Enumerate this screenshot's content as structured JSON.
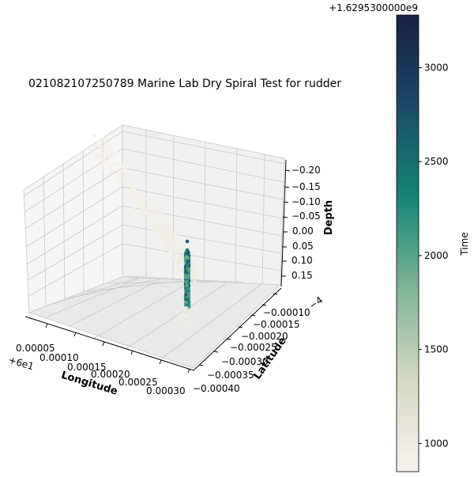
{
  "chart_data": {
    "type": "scatter",
    "title": "021082107250789 Marine Lab Dry Spiral Test for rudder",
    "xlabel": "Longitude",
    "ylabel": "Latitude",
    "zlabel": "Depth",
    "x_offset_label": "+6e1",
    "y_offset_label": "−4",
    "x_ticks": [
      "0.00005",
      "0.00010",
      "0.00015",
      "0.00020",
      "0.00025",
      "0.00030"
    ],
    "y_ticks": [
      "−0.00010",
      "−0.00015",
      "−0.00020",
      "−0.00025",
      "−0.00030",
      "−0.00035",
      "−0.00040"
    ],
    "z_ticks": [
      "−0.20",
      "−0.15",
      "−0.10",
      "−0.05",
      "0.00",
      "0.05",
      "0.10",
      "0.15"
    ],
    "z_inverted": true,
    "grid": true,
    "colorbar": {
      "label": "Time",
      "offset_label": "+1.6295300000e9",
      "ticks": [
        "1000",
        "1500",
        "2000",
        "2500",
        "3000"
      ],
      "range": [
        850,
        3280
      ],
      "colormap": "teal sequential",
      "colors": [
        "#f8f2ee",
        "#d6d9c4",
        "#7fb596",
        "#168577",
        "#1b4a67",
        "#171f45"
      ]
    },
    "series": [
      {
        "description_points": [
          {
            "lon": 4e-05,
            "lat": -0.00012,
            "depth": -0.18,
            "time": 880
          },
          {
            "lon": 5e-05,
            "lat": -0.00014,
            "depth": -0.12,
            "time": 900
          },
          {
            "lon": 7e-05,
            "lat": -0.00017,
            "depth": -0.07,
            "time": 920
          },
          {
            "lon": 9e-05,
            "lat": -0.0002,
            "depth": -0.02,
            "time": 950
          },
          {
            "lon": 0.00012,
            "lat": -0.00024,
            "depth": 0.04,
            "time": 980
          },
          {
            "lon": 0.00015,
            "lat": -0.00028,
            "depth": 0.09,
            "time": 1010
          },
          {
            "lon": 0.00018,
            "lat": -0.00031,
            "depth": 0.13,
            "time": 1040
          },
          {
            "lon": 0.00021,
            "lat": -0.00033,
            "depth": 0.16,
            "time": 1070
          },
          {
            "lon": 0.00023,
            "lat": -0.0003,
            "depth": 0.1,
            "time": 2600
          },
          {
            "lon": 0.00023,
            "lat": -0.0003,
            "depth": 0.04,
            "time": 2000
          },
          {
            "lon": 0.00023,
            "lat": -0.0003,
            "depth": 0.16,
            "time": 1900
          }
        ]
      }
    ]
  }
}
